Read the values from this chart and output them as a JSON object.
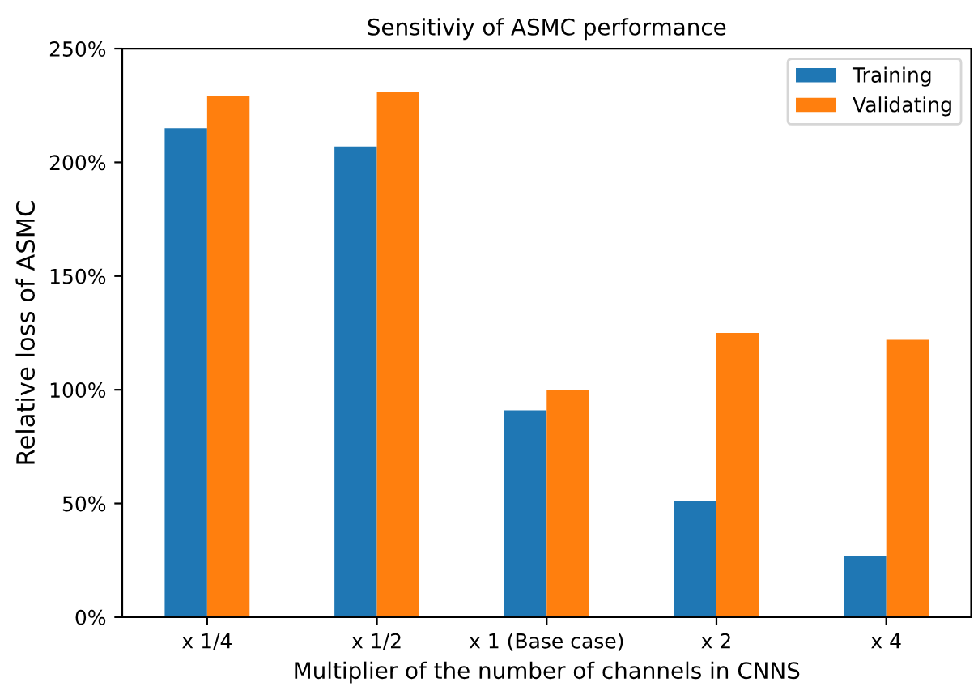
{
  "chart_data": {
    "type": "bar",
    "title": "Sensitiviy of ASMC performance",
    "xlabel": "Multiplier of the number of channels in CNNS",
    "ylabel": "Relative loss of ASMC",
    "categories": [
      "x 1/4",
      "x 1/2",
      "x 1 (Base case)",
      "x 2",
      "x 4"
    ],
    "series": [
      {
        "name": "Training",
        "color": "#1f77b4",
        "values": [
          215,
          207,
          91,
          51,
          27
        ]
      },
      {
        "name": "Validating",
        "color": "#ff7f0e",
        "values": [
          229,
          231,
          100,
          125,
          122
        ]
      }
    ],
    "ylim": [
      0,
      250
    ],
    "yticks": [
      {
        "value": 0,
        "label": "0%"
      },
      {
        "value": 50,
        "label": "50%"
      },
      {
        "value": 100,
        "label": "100%"
      },
      {
        "value": 150,
        "label": "150%"
      },
      {
        "value": 200,
        "label": "200%"
      },
      {
        "value": 250,
        "label": "250%"
      }
    ],
    "legend": "top right",
    "grid": false
  }
}
